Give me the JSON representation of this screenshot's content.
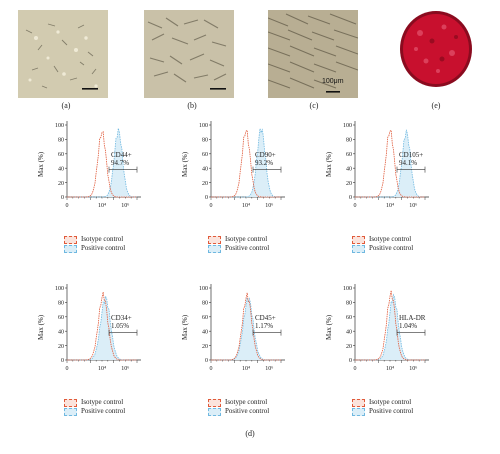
{
  "panels": {
    "a": "(a)",
    "b": "(b)",
    "c": "(c)",
    "d": "(d)",
    "e": "(e)"
  },
  "scale_bar_label": "100μm",
  "y_axis_label": "Max (%)",
  "legend": {
    "isotype": "Isotype control",
    "positive": "Positive control"
  },
  "colors": {
    "isotype": "#e05a3a",
    "positive": "#6fb8e0",
    "positive_fill": "#dbeef8",
    "stained_tissue": "#c8102e"
  },
  "chart_data": [
    {
      "type": "area",
      "marker": "CD44+",
      "percent": "94.7%",
      "xlim": [
        0,
        6
      ],
      "ylim": [
        0,
        100
      ],
      "y_ticks": [
        "0",
        "20",
        "40",
        "60",
        "80",
        "100"
      ],
      "x_ticks": [
        "0",
        "10⁴",
        "10⁶"
      ],
      "series": [
        {
          "name": "Isotype control",
          "peak_x": 3.0,
          "width": 0.35,
          "peak_y": 90
        },
        {
          "name": "Positive control",
          "peak_x": 4.4,
          "width": 0.35,
          "peak_y": 92
        }
      ]
    },
    {
      "type": "area",
      "marker": "CD90+",
      "percent": "93.2%",
      "xlim": [
        0,
        6
      ],
      "ylim": [
        0,
        100
      ],
      "y_ticks": [
        "0",
        "20",
        "40",
        "60",
        "80",
        "100"
      ],
      "x_ticks": [
        "0",
        "10⁴",
        "10⁶"
      ],
      "series": [
        {
          "name": "Isotype control",
          "peak_x": 3.0,
          "width": 0.35,
          "peak_y": 92
        },
        {
          "name": "Positive control",
          "peak_x": 4.3,
          "width": 0.35,
          "peak_y": 95
        }
      ]
    },
    {
      "type": "area",
      "marker": "CD105+",
      "percent": "94.1%",
      "xlim": [
        0,
        6
      ],
      "ylim": [
        0,
        100
      ],
      "y_ticks": [
        "0",
        "20",
        "40",
        "60",
        "80",
        "100"
      ],
      "x_ticks": [
        "0",
        "10⁴",
        "10⁶"
      ],
      "series": [
        {
          "name": "Isotype control",
          "peak_x": 3.0,
          "width": 0.35,
          "peak_y": 92
        },
        {
          "name": "Positive control",
          "peak_x": 4.4,
          "width": 0.35,
          "peak_y": 90
        }
      ]
    },
    {
      "type": "area",
      "marker": "CD34+",
      "percent": "1.05%",
      "xlim": [
        0,
        6
      ],
      "ylim": [
        0,
        100
      ],
      "y_ticks": [
        "0",
        "20",
        "40",
        "60",
        "80",
        "100"
      ],
      "x_ticks": [
        "0",
        "10⁴",
        "10⁶"
      ],
      "series": [
        {
          "name": "Isotype control",
          "peak_x": 3.1,
          "width": 0.4,
          "peak_y": 90
        },
        {
          "name": "Positive control",
          "peak_x": 3.3,
          "width": 0.42,
          "peak_y": 86
        }
      ]
    },
    {
      "type": "area",
      "marker": "CD45+",
      "percent": "1.17%",
      "xlim": [
        0,
        6
      ],
      "ylim": [
        0,
        100
      ],
      "y_ticks": [
        "0",
        "20",
        "40",
        "60",
        "80",
        "100"
      ],
      "x_ticks": [
        "0",
        "10⁴",
        "10⁶"
      ],
      "series": [
        {
          "name": "Isotype control",
          "peak_x": 3.1,
          "width": 0.4,
          "peak_y": 89
        },
        {
          "name": "Positive control",
          "peak_x": 3.2,
          "width": 0.42,
          "peak_y": 85
        }
      ]
    },
    {
      "type": "area",
      "marker": "HLA-DR",
      "percent": "1.04%",
      "xlim": [
        0,
        6
      ],
      "ylim": [
        0,
        100
      ],
      "y_ticks": [
        "0",
        "20",
        "40",
        "60",
        "80",
        "100"
      ],
      "x_ticks": [
        "0",
        "10⁴",
        "10⁶"
      ],
      "series": [
        {
          "name": "Isotype control",
          "peak_x": 3.1,
          "width": 0.38,
          "peak_y": 92
        },
        {
          "name": "Positive control",
          "peak_x": 3.3,
          "width": 0.4,
          "peak_y": 88
        }
      ]
    }
  ]
}
